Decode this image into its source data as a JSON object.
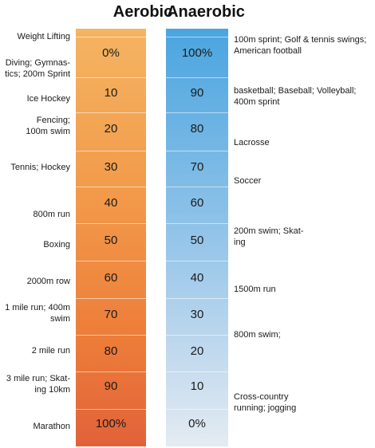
{
  "headers": {
    "aerobic": "Aerobic",
    "anaerobic": "Anaerobic"
  },
  "aerobic_values": [
    "0%",
    "10",
    "20",
    "30",
    "40",
    "50",
    "60",
    "70",
    "80",
    "90",
    "100%"
  ],
  "anaerobic_values": [
    "100%",
    "90",
    "80",
    "70",
    "60",
    "50",
    "40",
    "30",
    "20",
    "10",
    "0%"
  ],
  "left_labels": [
    [
      "Weight Lifting"
    ],
    [
      "Diving; Gymnas-",
      "tics; 200m Sprint"
    ],
    [
      "Ice Hockey"
    ],
    [
      "Fencing;",
      "100m swim"
    ],
    [
      "Tennis; Hockey"
    ],
    [
      "800m run"
    ],
    [
      "Boxing"
    ],
    [
      "2000m row"
    ],
    [
      "1 mile run; 400m",
      "swim"
    ],
    [
      "2 mile run"
    ],
    [
      "3 mile run; Skat-",
      "ing 10km"
    ],
    [
      "Marathon"
    ]
  ],
  "right_labels": [
    [
      "100m sprint; Golf & tennis swings;",
      "American football"
    ],
    [
      "basketball; Baseball; Volleyball;",
      "400m sprint"
    ],
    [
      "Lacrosse"
    ],
    [
      "Soccer"
    ],
    [
      "200m swim; Skat-",
      "ing"
    ],
    [
      "1500m run"
    ],
    [
      "800m swim;"
    ],
    [
      "Cross-country",
      "running; jogging"
    ]
  ]
}
